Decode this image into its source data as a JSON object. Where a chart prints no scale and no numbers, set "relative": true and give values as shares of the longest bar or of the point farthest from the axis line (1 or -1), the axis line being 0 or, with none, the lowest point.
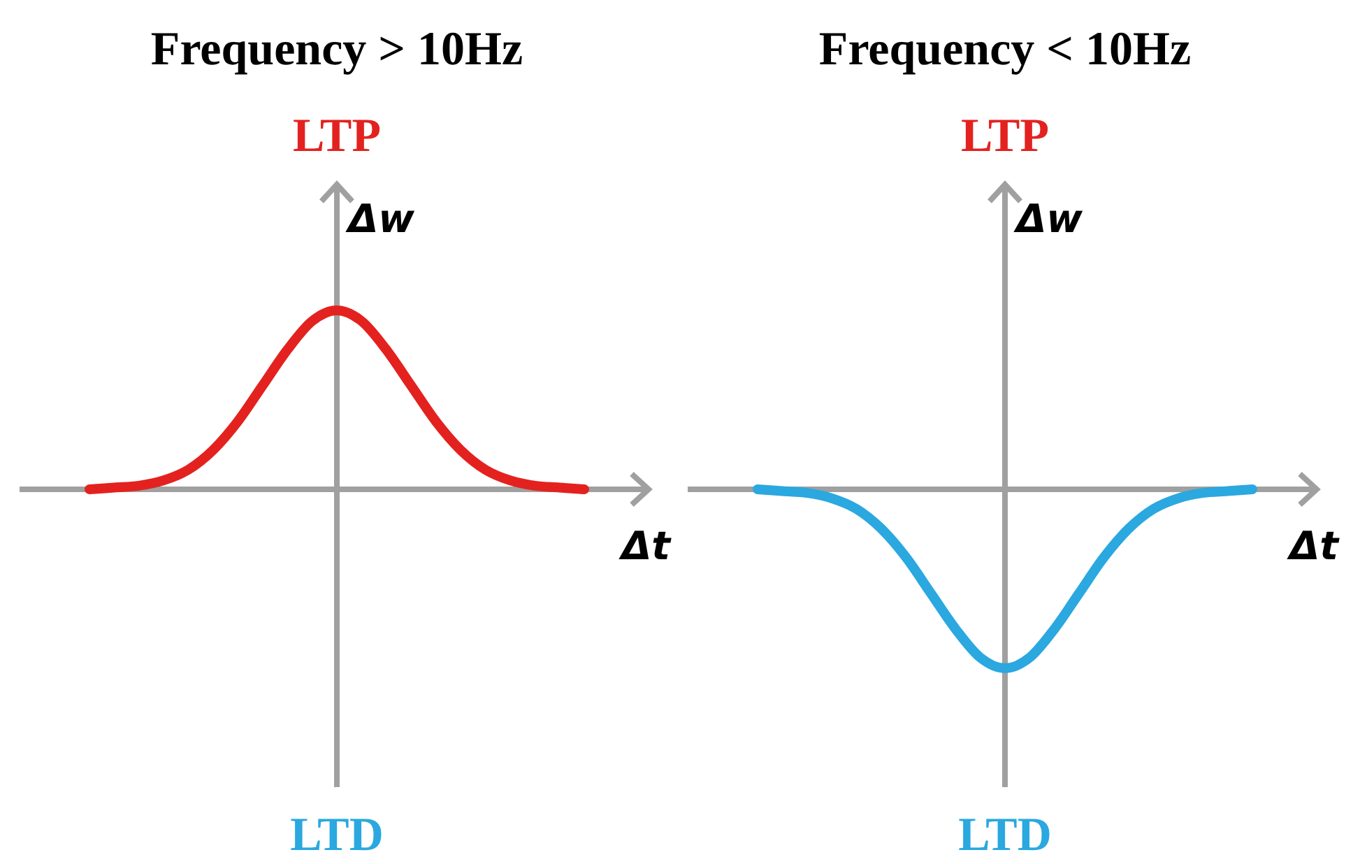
{
  "chart_data": [
    {
      "type": "line",
      "title": "Frequency > 10Hz",
      "xlabel": "Δt",
      "ylabel": "Δw",
      "annotations": [
        "LTP",
        "LTD"
      ],
      "relative": true,
      "categories": [
        null,
        null,
        null,
        null,
        null,
        null,
        null,
        null,
        null,
        null,
        null,
        null,
        null,
        null,
        null,
        null,
        null,
        null,
        null,
        null,
        null
      ],
      "series": [
        {
          "color": "#e3221f",
          "values": [
            0,
            0.01,
            0.02,
            0.05,
            0.11,
            0.22,
            0.38,
            0.58,
            0.78,
            0.94,
            1,
            0.94,
            0.78,
            0.58,
            0.38,
            0.22,
            0.11,
            0.05,
            0.02,
            0.01,
            0
          ]
        }
      ]
    },
    {
      "type": "line",
      "title": "Frequency < 10Hz",
      "xlabel": "Δt",
      "ylabel": "Δw",
      "annotations": [
        "LTP",
        "LTD"
      ],
      "relative": true,
      "categories": [
        null,
        null,
        null,
        null,
        null,
        null,
        null,
        null,
        null,
        null,
        null,
        null,
        null,
        null,
        null,
        null,
        null,
        null,
        null,
        null,
        null
      ],
      "series": [
        {
          "color": "#2aa8df",
          "values": [
            0,
            -0.01,
            -0.02,
            -0.05,
            -0.11,
            -0.22,
            -0.38,
            -0.58,
            -0.78,
            -0.94,
            -1,
            -0.94,
            -0.78,
            -0.58,
            -0.38,
            -0.22,
            -0.11,
            -0.05,
            -0.02,
            -0.01,
            0
          ]
        }
      ]
    }
  ]
}
